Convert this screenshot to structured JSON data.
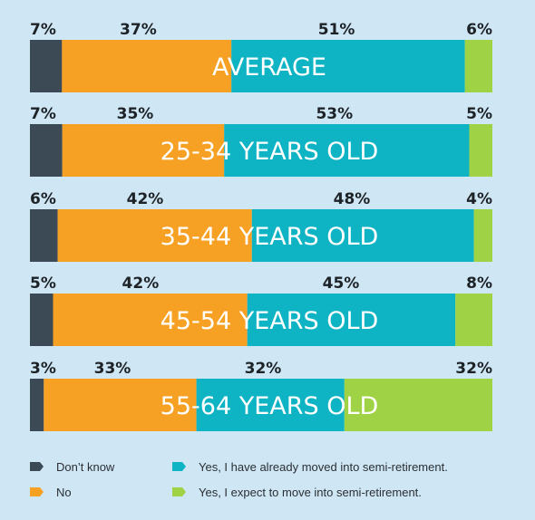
{
  "chart_data": {
    "type": "bar",
    "orientation": "horizontal",
    "stacked": true,
    "normalized": true,
    "unit": "%",
    "categories": [
      "AVERAGE",
      "25-34 YEARS OLD",
      "35-44 YEARS OLD",
      "45-54 YEARS OLD",
      "55-64 YEARS OLD"
    ],
    "series": [
      {
        "name": "Don’t know",
        "color": "#3b4a55",
        "values": [
          7,
          7,
          6,
          5,
          3
        ],
        "labels": [
          "7%",
          "7%",
          "6%",
          "5%",
          "3%"
        ]
      },
      {
        "name": "No",
        "color": "#f7a124",
        "values": [
          37,
          35,
          42,
          42,
          33
        ],
        "labels": [
          "37%",
          "35%",
          "42%",
          "42%",
          "33%"
        ]
      },
      {
        "name": "Yes, I have already moved into semi-retirement.",
        "color": "#0fb4c4",
        "values": [
          51,
          53,
          48,
          45,
          32
        ],
        "labels": [
          "51%",
          "53%",
          "48%",
          "45%",
          "32%"
        ]
      },
      {
        "name": "Yes, I expect to move into semi-retirement.",
        "color": "#9fd244",
        "values": [
          6,
          5,
          4,
          8,
          32
        ],
        "labels": [
          "6%",
          "5%",
          "4%",
          "8%",
          "32%"
        ]
      }
    ],
    "legend_position": "bottom",
    "grid": false
  }
}
